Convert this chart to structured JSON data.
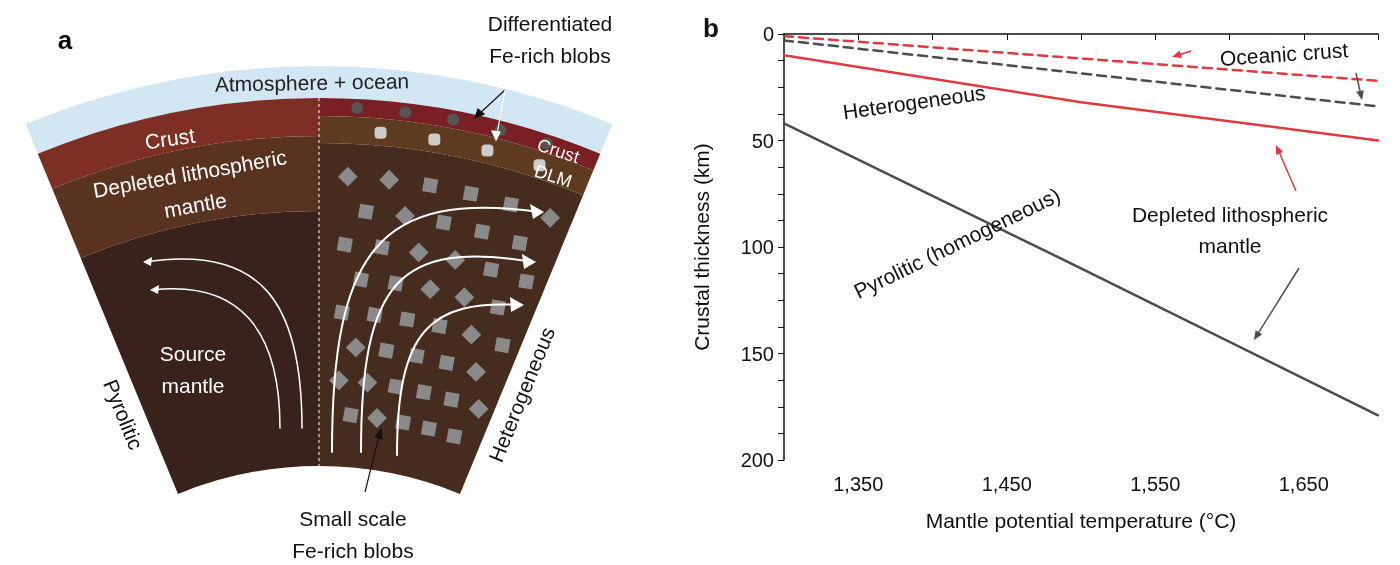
{
  "chart_data": [
    {
      "type": "other",
      "title": "a",
      "annotations": [
        "Differentiated\nFe-rich blobs",
        "Atmosphere + ocean",
        "Crust",
        "Depleted lithospheric\nmantle",
        "Crust",
        "DLM",
        "Source\nmantle",
        "Pyrolitic",
        "Heterogeneous",
        "Small scale\nFe-rich blobs"
      ]
    },
    {
      "type": "line",
      "title": "b",
      "xlabel": "Mantle potential temperature (°C)",
      "ylabel": "Crustal thickness (km)",
      "xlim": [
        1300,
        1700
      ],
      "xticks": [
        {
          "value": 1300,
          "label": null
        },
        {
          "value": 1350,
          "label": "1,350"
        },
        {
          "value": 1400,
          "label": null
        },
        {
          "value": 1450,
          "label": "1,450"
        },
        {
          "value": 1500,
          "label": null
        },
        {
          "value": 1550,
          "label": "1,550"
        },
        {
          "value": 1600,
          "label": null
        },
        {
          "value": 1650,
          "label": "1,650"
        },
        {
          "value": 1700,
          "label": null
        }
      ],
      "ylim": [
        200,
        0
      ],
      "yticks": [
        0,
        {
          "value": 12.5,
          "label": null
        },
        {
          "value": 25,
          "label": null
        },
        {
          "value": 37.5,
          "label": null
        },
        50,
        {
          "value": 62.5,
          "label": null
        },
        {
          "value": 75,
          "label": null
        },
        {
          "value": 87.5,
          "label": null
        },
        100,
        {
          "value": 112.5,
          "label": null
        },
        {
          "value": 125,
          "label": null
        },
        {
          "value": 137.5,
          "label": null
        },
        150,
        {
          "value": 162.5,
          "label": null
        },
        {
          "value": 175,
          "label": null
        },
        {
          "value": 187.5,
          "label": null
        },
        200
      ],
      "marker": "none",
      "series": [
        {
          "color": "#e0393e",
          "line_style": "dashed",
          "x": [
            1300,
            1500,
            1700
          ],
          "values": [
            1,
            11.5,
            22
          ]
        },
        {
          "color": "#4d4d4d",
          "line_style": "dashed",
          "x": [
            1300,
            1500,
            1700
          ],
          "values": [
            3,
            18.5,
            34
          ]
        },
        {
          "color": "#e0393e",
          "line_style": "solid",
          "x": [
            1300,
            1500,
            1700
          ],
          "values": [
            10,
            32,
            50
          ]
        },
        {
          "color": "#4d4d4d",
          "line_style": "solid",
          "x": [
            1300,
            1500,
            1700
          ],
          "values": [
            42,
            110,
            179
          ]
        }
      ],
      "annotations": [
        "Oceanic crust",
        "Heterogeneous",
        "Depleted lithospheric\nmantle",
        "Pyrolitic (homogeneous)"
      ]
    }
  ]
}
